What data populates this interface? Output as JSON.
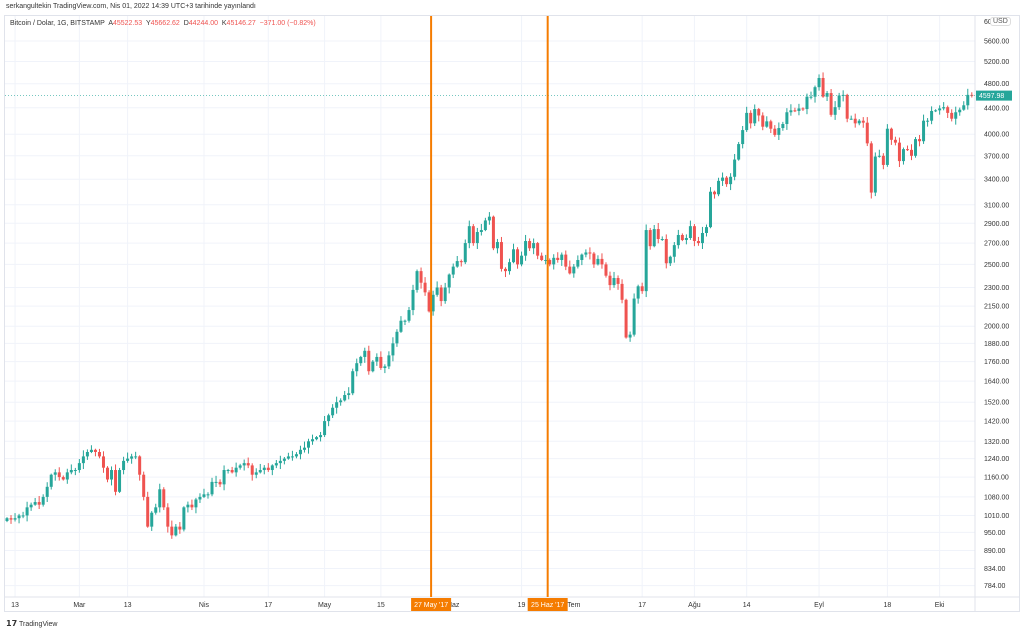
{
  "header": {
    "published": "serkangultekin TradingView.com, Nis 01, 2022 14:39 UTC+3 tarihinde yayınlandı"
  },
  "legend": {
    "symbol": "Bitcoin / Dolar, 1G, BITSTAMP",
    "o_label": "A",
    "o": "45522.53",
    "h_label": "Y",
    "h": "45662.62",
    "l_label": "D",
    "l": "44244.00",
    "c_label": "K",
    "c": "45146.27",
    "change": "−371.00 (−0.82%)"
  },
  "currency": "USD",
  "footer": {
    "brand": "TradingView"
  },
  "colors": {
    "up": "#26a69a",
    "down": "#ef5350",
    "marker": "#f57c00"
  },
  "chart_data": {
    "type": "candlestick",
    "scale": "log",
    "ylim": [
      760,
      6000
    ],
    "y_ticks": [
      784,
      834,
      890,
      950,
      1010,
      1080,
      1160,
      1240,
      1320,
      1420,
      1520,
      1640,
      1760,
      1880,
      2000,
      2150,
      2300,
      2500,
      2700,
      2900,
      3100,
      3400,
      3700,
      4000,
      4400,
      4800,
      5200,
      5600
    ],
    "last_price": "4597.98",
    "x_ticks": [
      {
        "d": 2,
        "label": "13"
      },
      {
        "d": 18,
        "label": "Mar"
      },
      {
        "d": 30,
        "label": "13"
      },
      {
        "d": 49,
        "label": "Nis"
      },
      {
        "d": 65,
        "label": "17"
      },
      {
        "d": 79,
        "label": "May"
      },
      {
        "d": 93,
        "label": "15"
      },
      {
        "d": 128,
        "label": "19"
      },
      {
        "d": 158,
        "label": "17"
      },
      {
        "d": 171,
        "label": "Ağu"
      },
      {
        "d": 184,
        "label": "14"
      },
      {
        "d": 202,
        "label": "Eyl"
      },
      {
        "d": 219,
        "label": "18"
      },
      {
        "d": 232,
        "label": "Eki"
      }
    ],
    "hidden_ticks": [
      {
        "d": 110,
        "label": "Haz"
      },
      {
        "d": 140,
        "label": "Tem"
      }
    ],
    "markers": [
      {
        "d": 105,
        "label": "27 May '17"
      },
      {
        "d": 134,
        "label": "25 Haz '17"
      }
    ],
    "start_open": 990,
    "closes": [
      1000,
      995,
      1000,
      1010,
      1010,
      1040,
      1050,
      1060,
      1050,
      1080,
      1120,
      1170,
      1180,
      1160,
      1150,
      1180,
      1190,
      1190,
      1220,
      1250,
      1270,
      1280,
      1270,
      1250,
      1200,
      1150,
      1190,
      1100,
      1190,
      1230,
      1240,
      1250,
      1250,
      1170,
      1080,
      970,
      1020,
      1040,
      1110,
      1040,
      970,
      940,
      970,
      960,
      1040,
      1050,
      1040,
      1070,
      1080,
      1090,
      1090,
      1140,
      1140,
      1130,
      1190,
      1190,
      1180,
      1200,
      1210,
      1220,
      1210,
      1170,
      1180,
      1190,
      1200,
      1190,
      1210,
      1220,
      1230,
      1240,
      1250,
      1250,
      1260,
      1280,
      1290,
      1320,
      1330,
      1340,
      1350,
      1420,
      1450,
      1490,
      1520,
      1530,
      1560,
      1570,
      1700,
      1750,
      1790,
      1830,
      1700,
      1760,
      1790,
      1720,
      1730,
      1800,
      1880,
      1960,
      2040,
      2040,
      2120,
      2280,
      2440,
      2340,
      2260,
      2110,
      2240,
      2300,
      2190,
      2300,
      2410,
      2480,
      2530,
      2520,
      2700,
      2870,
      2700,
      2810,
      2830,
      2930,
      2970,
      2650,
      2710,
      2460,
      2440,
      2520,
      2640,
      2500,
      2580,
      2720,
      2650,
      2700,
      2580,
      2540,
      2540,
      2500,
      2560,
      2540,
      2590,
      2480,
      2420,
      2480,
      2540,
      2590,
      2610,
      2600,
      2500,
      2550,
      2500,
      2400,
      2320,
      2380,
      2330,
      2200,
      1920,
      1940,
      2210,
      2310,
      2270,
      2830,
      2670,
      2840,
      2740,
      2740,
      2510,
      2570,
      2680,
      2780,
      2730,
      2750,
      2870,
      2720,
      2700,
      2800,
      2860,
      3250,
      3220,
      3380,
      3420,
      3340,
      3430,
      3650,
      3860,
      4060,
      4320,
      4160,
      4380,
      4280,
      4110,
      4190,
      4080,
      3990,
      4090,
      4150,
      4330,
      4360,
      4350,
      4390,
      4380,
      4580,
      4580,
      4740,
      4900,
      4580,
      4640,
      4290,
      4410,
      4600,
      4610,
      4230,
      4230,
      4160,
      4200,
      4170,
      3870,
      3240,
      3690,
      3700,
      3580,
      4080,
      3920,
      3880,
      3630,
      3790,
      3780,
      3700,
      3930,
      3900,
      4200,
      4200,
      4350,
      4360,
      4390,
      4410,
      4320,
      4230,
      4330,
      4370,
      4440,
      4610,
      4598
    ]
  }
}
